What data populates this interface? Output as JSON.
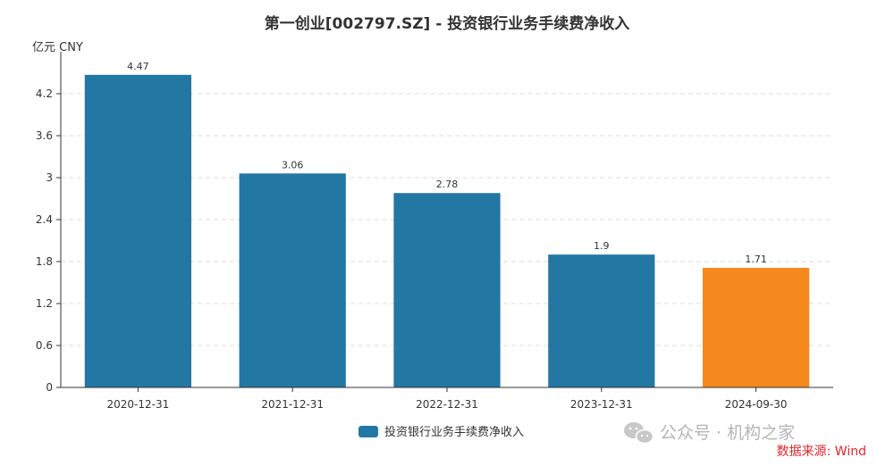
{
  "chart_data": {
    "type": "bar",
    "title": "第一创业[002797.SZ] - 投资银行业务手续费净收入",
    "ylabel": "亿元  CNY",
    "categories": [
      "2020-12-31",
      "2021-12-31",
      "2022-12-31",
      "2023-12-31",
      "2024-09-30"
    ],
    "series": [
      {
        "name": "投资银行业务手续费净收入",
        "values": [
          4.47,
          3.06,
          2.78,
          1.9,
          1.71
        ]
      }
    ],
    "data_labels": [
      "4.47",
      "3.06",
      "2.78",
      "1.9",
      "1.71"
    ],
    "yticks": [
      "0",
      "0.6",
      "1.2",
      "1.8",
      "2.4",
      "3",
      "3.6",
      "4.2"
    ],
    "ylim": [
      0,
      4.8
    ],
    "grid": true,
    "legend": "bottom-center",
    "colors": {
      "bar": "#2377a3",
      "highlight": "#f5891e",
      "grid": "#dddddd"
    },
    "highlight_index": 4
  },
  "source": "数据来源: Wind",
  "watermark": "公众号 · 机构之家"
}
